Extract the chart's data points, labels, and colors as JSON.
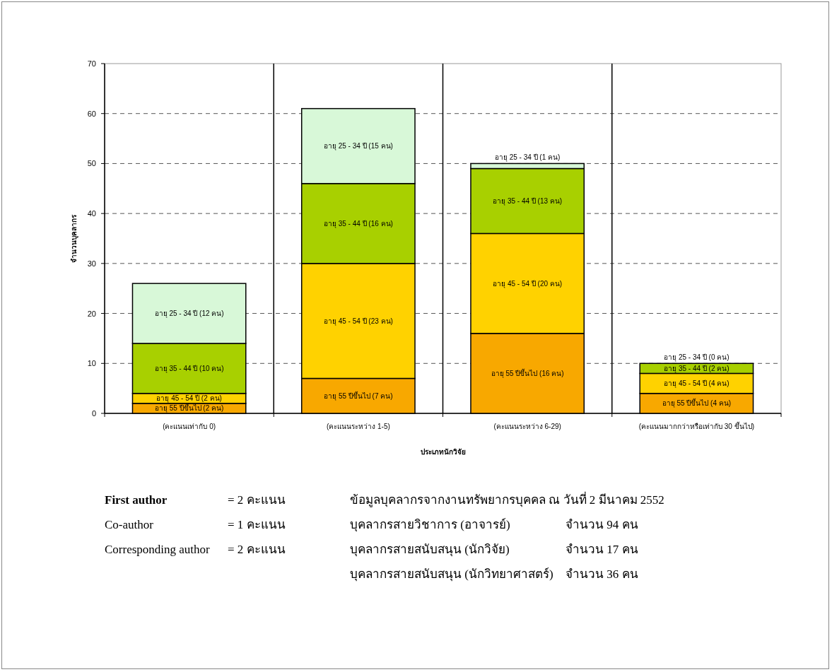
{
  "chart_data": {
    "type": "bar",
    "stacked": true,
    "xlabel": "ประเภทนักวิจัย",
    "ylabel": "จำนวนบุคลากร",
    "categories": [
      "(คะแนนเท่ากับ 0)",
      "(คะแนนระหว่าง 1-5)",
      "(คะแนนระหว่าง 6-29)",
      "(คะแนนมากกว่าหรือเท่ากับ 30 ขึ้นไป)"
    ],
    "series": [
      {
        "color": "#f8a800",
        "values": [
          2,
          7,
          16,
          4
        ],
        "value_labels": [
          "อายุ 55 ปีขึ้นไป (2 คน)",
          "อายุ 55 ปีขึ้นไป (7 คน)",
          "อายุ 55 ปีขึ้นไป (16 คน)",
          "อายุ 55 ปีขึ้นไป (4 คน)"
        ]
      },
      {
        "color": "#ffd200",
        "values": [
          2,
          23,
          20,
          4
        ],
        "value_labels": [
          "อายุ 45 - 54 ปี (2 คน)",
          "อายุ 45 - 54 ปี (23 คน)",
          "อายุ 45 - 54 ปี (20 คน)",
          "อายุ 45 - 54 ปี (4 คน)"
        ]
      },
      {
        "color": "#a8d000",
        "values": [
          10,
          16,
          13,
          2
        ],
        "value_labels": [
          "อายุ 35 - 44 ปี (10 คน)",
          "อายุ 35 - 44 ปี (16 คน)",
          "อายุ 35 - 44 ปี (13 คน)",
          "อายุ 35 - 44 ปี (2 คน)"
        ]
      },
      {
        "color": "#d8f8d8",
        "values": [
          12,
          15,
          1,
          0
        ],
        "value_labels": [
          "อายุ 25 - 34 ปี (12 คน)",
          "อายุ 25 - 34 ปี (15 คน)",
          "อายุ 25 - 34 ปี (1 คน)",
          "อายุ 25 - 34 ปี (0 คน)"
        ]
      }
    ],
    "ylim": [
      0,
      70
    ],
    "yticks": [
      0,
      10,
      20,
      30,
      40,
      50,
      60,
      70
    ],
    "grid": true,
    "annotations": [
      "First author",
      "= 2 คะแนน",
      "ข้อมูลบุคลากรจากงานทรัพยากรบุคคล ณ วันที่ 2 มีนาคม 2552",
      "Co-author",
      "= 1 คะแนน",
      "บุคลากรสายวิชาการ (อาจารย์)",
      "จำนวน 94 คน",
      "Corresponding author",
      "= 2 คะแนน",
      "บุคลากรสายสนับสนุน (นักวิจัย)",
      "จำนวน 17 คน",
      "บุคลากรสายสนับสนุน (นักวิทยาศาสตร์)",
      "จำนวน 36 คน"
    ]
  }
}
